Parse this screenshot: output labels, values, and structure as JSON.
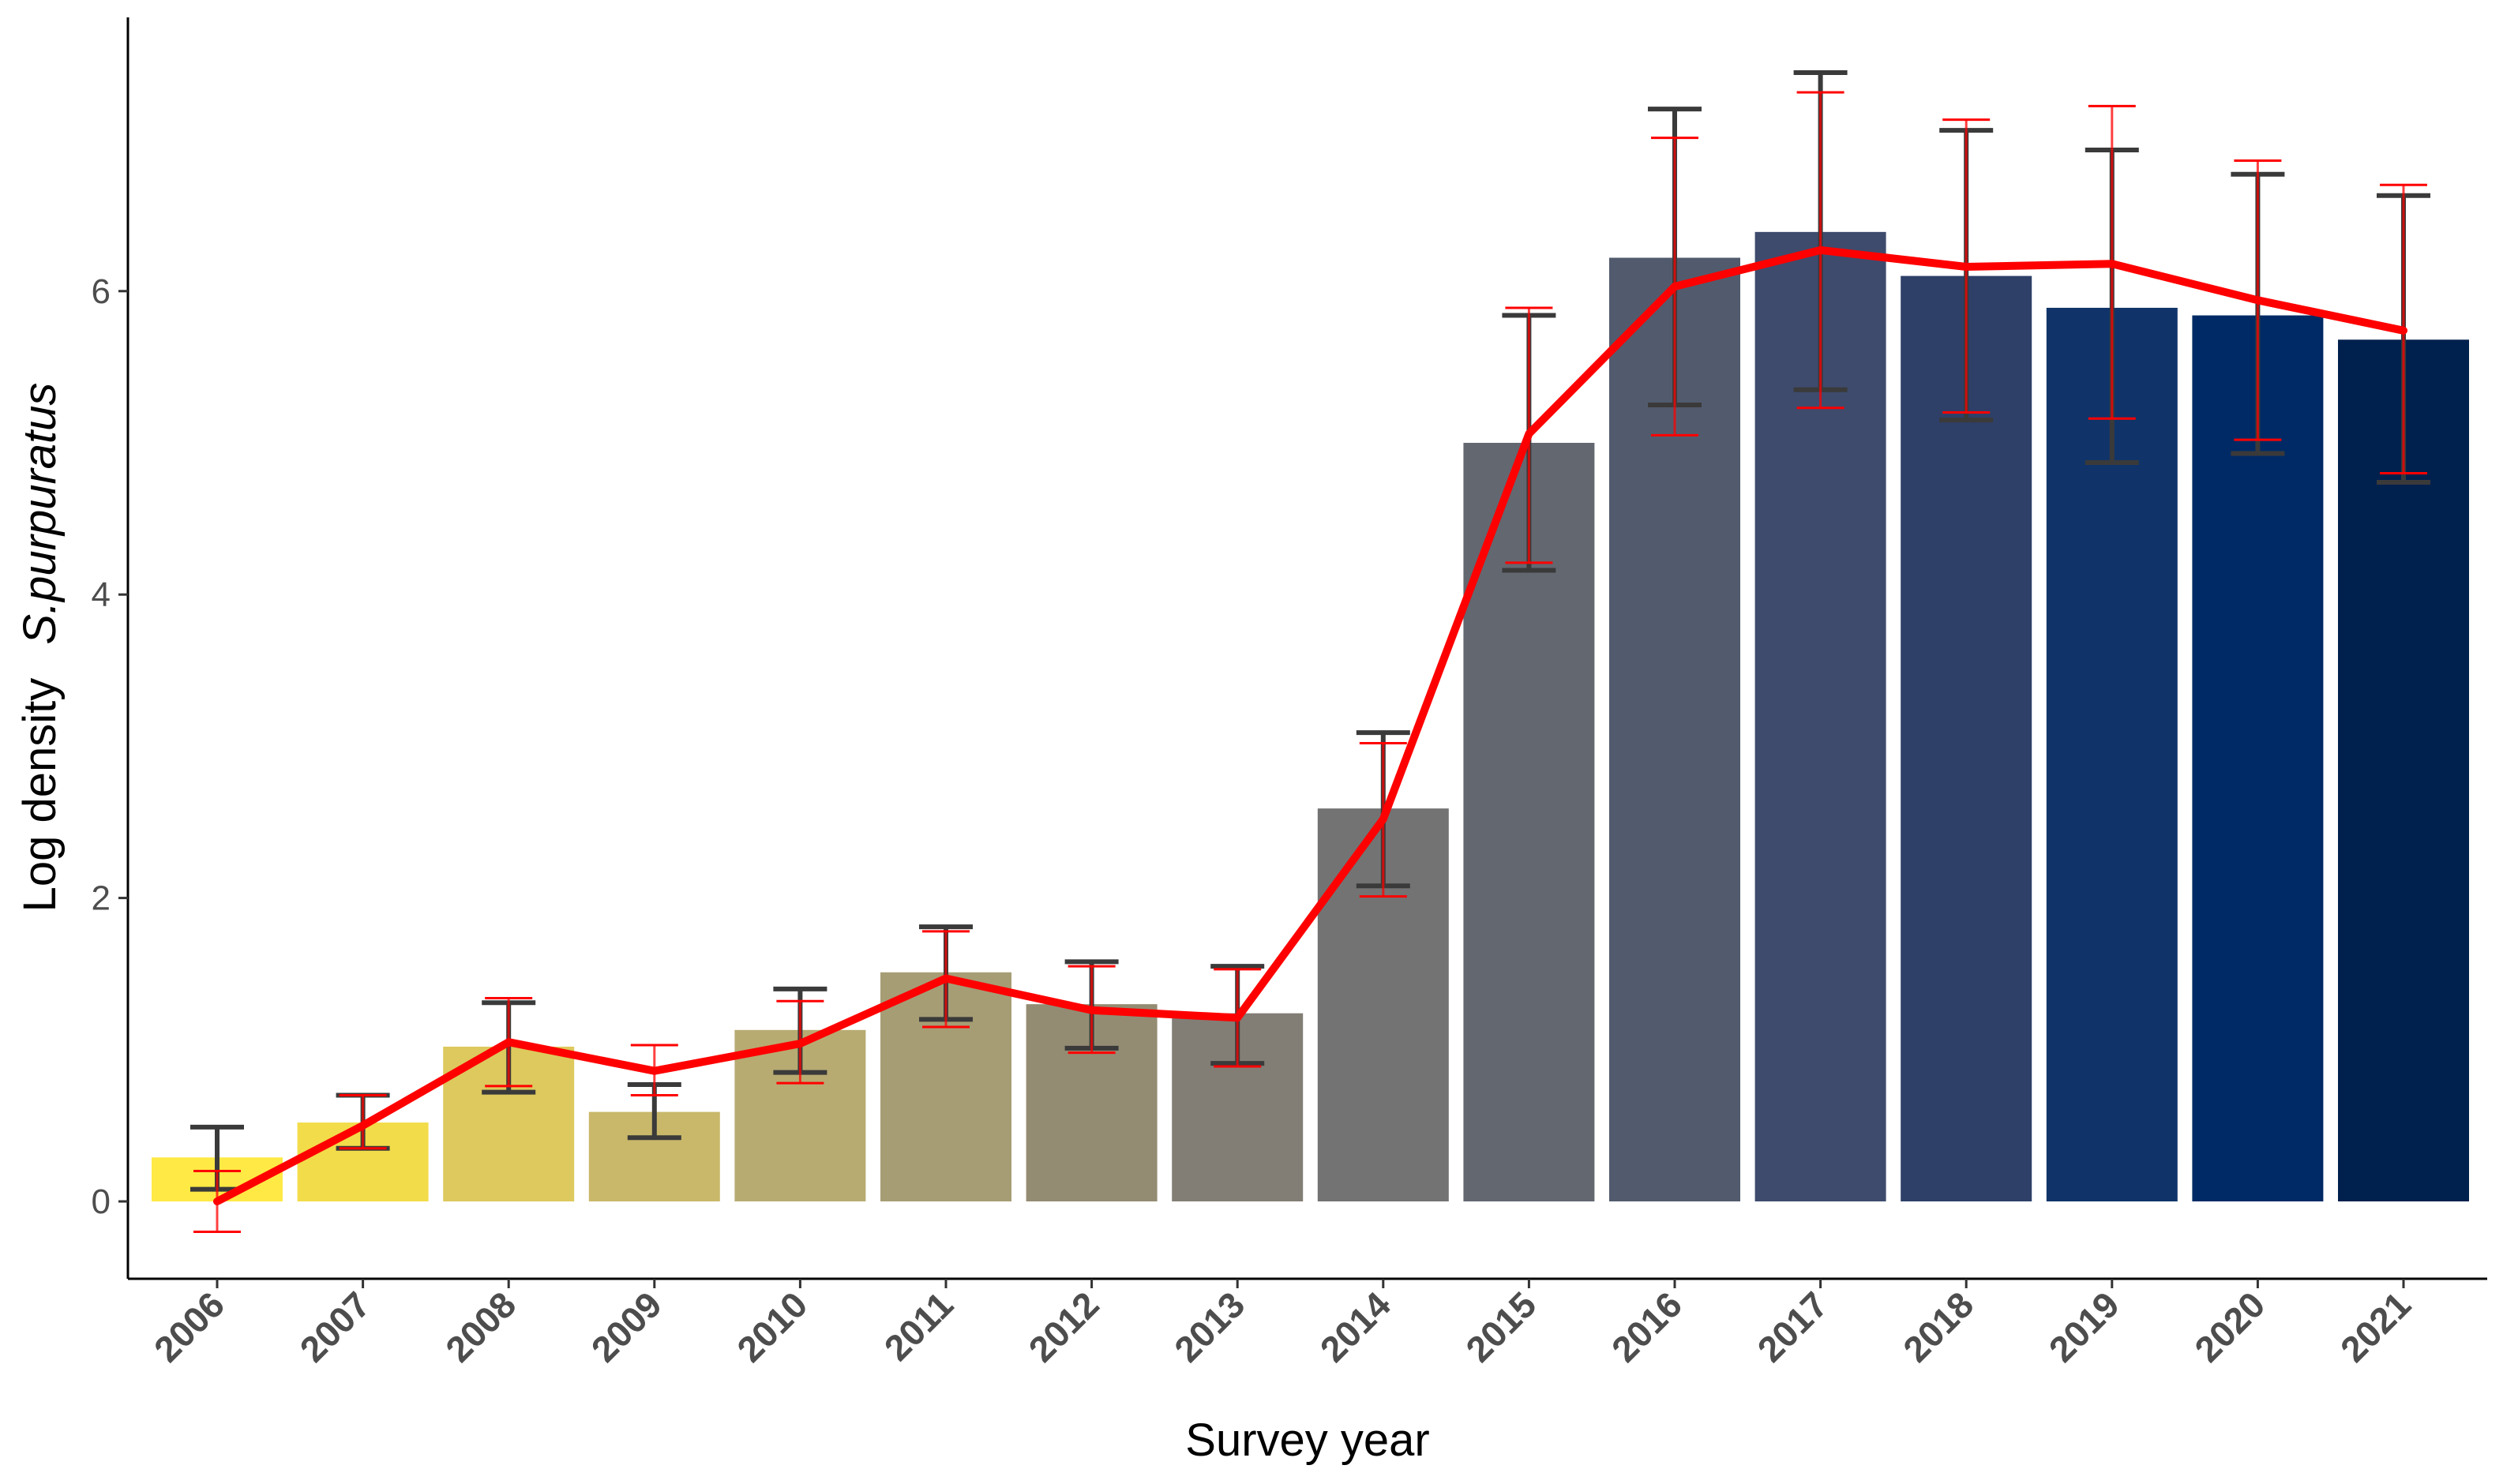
{
  "chart_data": {
    "type": "bar",
    "xlabel": "Survey year",
    "ylabel": {
      "prefix": "Log density",
      "species": "S.purpuratus"
    },
    "ylim": [
      -0.55,
      7.75
    ],
    "yticks": [
      0,
      2,
      4,
      6
    ],
    "grid": false,
    "legend": "none",
    "categories": [
      "2006",
      "2007",
      "2008",
      "2009",
      "2010",
      "2011",
      "2012",
      "2013",
      "2014",
      "2015",
      "2016",
      "2017",
      "2018",
      "2019",
      "2020",
      "2021"
    ],
    "series": [
      {
        "type": "bar",
        "values": [
          0.29,
          0.52,
          1.02,
          0.59,
          1.13,
          1.51,
          1.3,
          1.24,
          2.59,
          5.0,
          6.22,
          6.39,
          6.1,
          5.89,
          5.84,
          5.68
        ],
        "error_low": [
          0.08,
          0.35,
          0.72,
          0.42,
          0.85,
          1.2,
          1.01,
          0.91,
          2.08,
          4.16,
          5.25,
          5.35,
          5.15,
          4.87,
          4.93,
          4.74
        ],
        "error_high": [
          0.49,
          0.7,
          1.31,
          0.77,
          1.4,
          1.81,
          1.58,
          1.55,
          3.09,
          5.84,
          7.2,
          7.44,
          7.06,
          6.93,
          6.77,
          6.63
        ],
        "colors": [
          "#FFE945",
          "#F2DC4A",
          "#DDC95D",
          "#C9B86A",
          "#B8AB72",
          "#A69D75",
          "#938C73",
          "#827E75",
          "#737373",
          "#636770",
          "#525B6D",
          "#3E4B6D",
          "#2E4068",
          "#10346A",
          "#002A65",
          "#00204D"
        ]
      },
      {
        "type": "line",
        "values": [
          0.0,
          0.5,
          1.05,
          0.86,
          1.04,
          1.47,
          1.26,
          1.21,
          2.52,
          5.06,
          6.03,
          6.27,
          6.16,
          6.18,
          5.94,
          5.74
        ],
        "error_low": [
          -0.2,
          0.35,
          0.76,
          0.7,
          0.78,
          1.15,
          0.98,
          0.89,
          2.01,
          4.21,
          5.05,
          5.23,
          5.2,
          5.16,
          5.02,
          4.8
        ],
        "error_high": [
          0.2,
          0.7,
          1.34,
          1.03,
          1.32,
          1.78,
          1.55,
          1.53,
          3.02,
          5.89,
          7.01,
          7.31,
          7.13,
          7.22,
          6.86,
          6.7
        ],
        "color": "#FF0000"
      }
    ]
  }
}
